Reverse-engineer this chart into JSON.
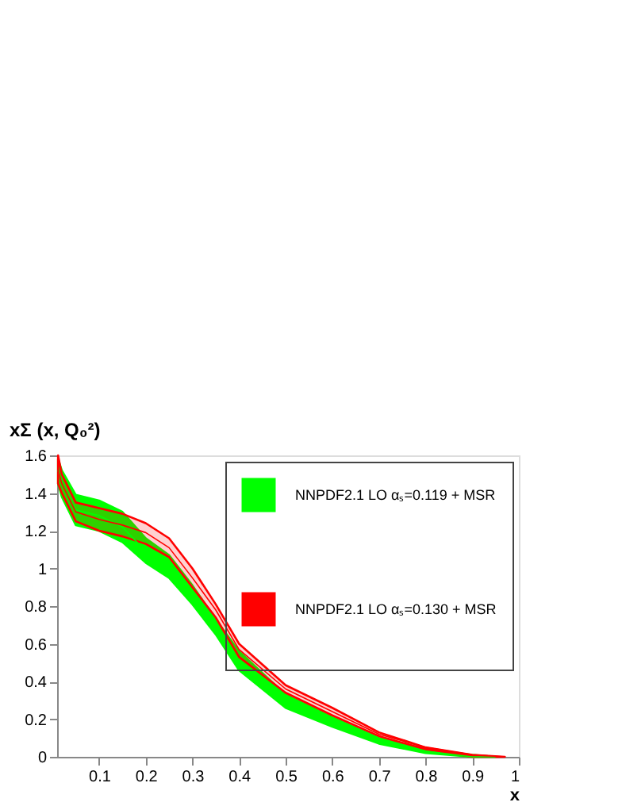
{
  "chart_data": {
    "type": "line",
    "title": "xΣ (x, Q₀²)",
    "xlabel": "x",
    "xlim": [
      0.01,
      1
    ],
    "xticks": [
      0.1,
      0.2,
      0.3,
      0.4,
      0.5,
      0.6,
      0.7,
      0.8,
      0.9,
      1
    ],
    "ylim": [
      0,
      1.6
    ],
    "yticks": [
      0,
      0.2,
      0.4,
      0.6,
      0.8,
      1,
      1.2,
      1.4,
      1.6
    ],
    "grid": false,
    "legend": "top right",
    "series": [
      {
        "name": "NNPDF2.1 LO αₛ=0.119 + MSR",
        "color": "#00ff00",
        "x": [
          0.012,
          0.02,
          0.05,
          0.1,
          0.15,
          0.2,
          0.25,
          0.3,
          0.35,
          0.4,
          0.5,
          0.6,
          0.7,
          0.8,
          0.9,
          0.95
        ],
        "values": [
          1.52,
          1.45,
          1.31,
          1.28,
          1.22,
          1.09,
          1.01,
          0.86,
          0.69,
          0.51,
          0.3,
          0.19,
          0.09,
          0.03,
          0,
          0
        ],
        "lower": [
          1.45,
          1.38,
          1.23,
          1.2,
          1.14,
          1.03,
          0.95,
          0.81,
          0.65,
          0.46,
          0.26,
          0.16,
          0.07,
          0.02,
          0,
          0
        ],
        "upper": [
          1.58,
          1.52,
          1.39,
          1.36,
          1.3,
          1.16,
          1.07,
          0.91,
          0.73,
          0.56,
          0.33,
          0.21,
          0.1,
          0.04,
          0.01,
          0
        ]
      },
      {
        "name": "NNPDF2.1 LO αₛ=0.130 + MSR",
        "color": "#ff0000",
        "x": [
          0.012,
          0.02,
          0.05,
          0.1,
          0.15,
          0.2,
          0.25,
          0.3,
          0.35,
          0.4,
          0.5,
          0.6,
          0.7,
          0.8,
          0.9,
          0.97
        ],
        "values": [
          1.52,
          1.45,
          1.3,
          1.26,
          1.23,
          1.19,
          1.11,
          0.95,
          0.78,
          0.57,
          0.36,
          0.24,
          0.12,
          0.05,
          0.01,
          0
        ],
        "lower": [
          1.45,
          1.4,
          1.25,
          1.2,
          1.17,
          1.13,
          1.06,
          0.9,
          0.74,
          0.53,
          0.34,
          0.22,
          0.11,
          0.04,
          0,
          0
        ],
        "upper": [
          1.6,
          1.5,
          1.35,
          1.32,
          1.29,
          1.24,
          1.16,
          1.0,
          0.81,
          0.6,
          0.38,
          0.26,
          0.13,
          0.05,
          0.01,
          0
        ]
      }
    ]
  }
}
